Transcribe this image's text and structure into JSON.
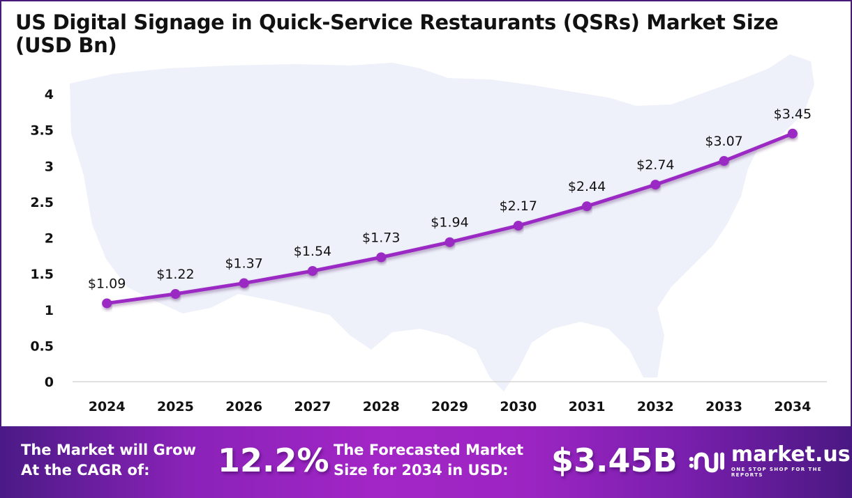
{
  "chart_data": {
    "type": "line",
    "title": "US Digital Signage in Quick-Service Restaurants (QSRs) Market Size (USD Bn)",
    "xlabel": "",
    "ylabel": "",
    "categories": [
      "2024",
      "2025",
      "2026",
      "2027",
      "2028",
      "2029",
      "2030",
      "2031",
      "2032",
      "2033",
      "2034"
    ],
    "series": [
      {
        "name": "Market Size (USD Bn)",
        "values": [
          1.09,
          1.22,
          1.37,
          1.54,
          1.73,
          1.94,
          2.17,
          2.44,
          2.74,
          3.07,
          3.45
        ],
        "color": "#9b2bc4"
      }
    ],
    "data_labels": [
      "$1.09",
      "$1.22",
      "$1.37",
      "$1.54",
      "$1.73",
      "$1.94",
      "$2.17",
      "$2.44",
      "$2.74",
      "$3.07",
      "$3.45"
    ],
    "yticks": [
      0,
      0.5,
      1,
      1.5,
      2,
      2.5,
      3,
      3.5,
      4
    ],
    "ytick_labels": [
      "0",
      "0.5",
      "1",
      "1.5",
      "2",
      "2.5",
      "3",
      "3.5",
      "4"
    ],
    "ylim": [
      0,
      4
    ],
    "grid": false,
    "legend": "none",
    "background": "US map silhouette"
  },
  "title": {
    "line1": "US Digital Signage in Quick-Service Restaurants (QSRs) Market Size",
    "line2": "(USD Bn)"
  },
  "banner": {
    "cagr_text_line1": "The Market will Grow",
    "cagr_text_line2": "At the CAGR of:",
    "cagr_value": "12.2%",
    "forecast_text_line1": "The Forecasted Market",
    "forecast_text_line2": "Size for 2034 in USD:",
    "forecast_value": "$3.45B",
    "logo_name": "market.us",
    "logo_tagline": "ONE STOP SHOP FOR THE REPORTS"
  },
  "colors": {
    "line": "#9b2bc4",
    "frame": "#4a1a7a",
    "map": "#eef1fa"
  }
}
